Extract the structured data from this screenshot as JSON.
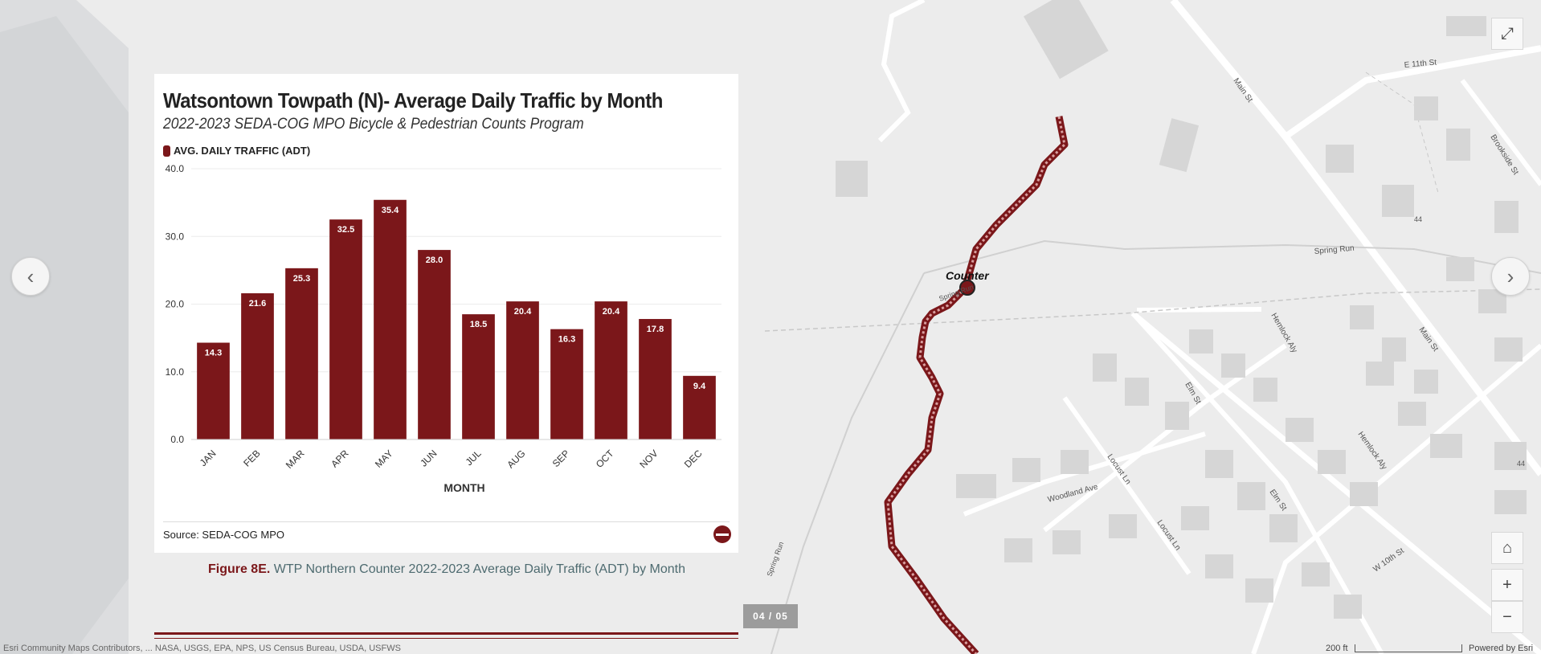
{
  "chart": {
    "title": "Watsontown Towpath (N)- Average Daily Traffic by Month",
    "subtitle": "2022-2023 SEDA-COG MPO Bicycle & Pedestrian Counts Program",
    "legend": "AVG. DAILY TRAFFIC (ADT)",
    "source": "Source: SEDA-COG MPO"
  },
  "chart_data": {
    "type": "bar",
    "title": "Watsontown Towpath (N)- Average Daily Traffic by Month",
    "subtitle": "2022-2023 SEDA-COG MPO Bicycle & Pedestrian Counts Program",
    "xlabel": "MONTH",
    "ylabel": "",
    "categories": [
      "JAN",
      "FEB",
      "MAR",
      "APR",
      "MAY",
      "JUN",
      "JUL",
      "AUG",
      "SEP",
      "OCT",
      "NOV",
      "DEC"
    ],
    "series": [
      {
        "name": "AVG. DAILY TRAFFIC (ADT)",
        "values": [
          14.3,
          21.6,
          25.3,
          32.5,
          35.4,
          28.0,
          18.5,
          20.4,
          16.3,
          20.4,
          17.8,
          9.4
        ],
        "labels": [
          "14.3",
          "21.6",
          "25.3",
          "32.5",
          "35.4",
          "28.0",
          "18.5",
          "20.4",
          "16.3",
          "20.4",
          "17.8",
          "9.4"
        ],
        "color": "#7b171a"
      }
    ],
    "ylim": [
      0,
      40
    ],
    "yticks": [
      "0.0",
      "10.0",
      "20.0",
      "30.0",
      "40.0"
    ],
    "ytick_values": [
      0,
      10,
      20,
      30,
      40
    ],
    "grid": true,
    "legend_position": "top-left"
  },
  "caption": {
    "label": "Figure 8E.",
    "text": "WTP Northern Counter 2022-2023 Average Daily Traffic (ADT) by Month"
  },
  "pager": "04 / 05",
  "map": {
    "counter_label": "Counter",
    "streets": [
      "E 11th St",
      "Main St",
      "Brookside St",
      "44",
      "Spring Run",
      "Hemlock Aly",
      "Main St",
      "Elm St",
      "Locust Ln",
      "Woodland Ave",
      "Elm St",
      "Locust Ln",
      "W 10th St",
      "Hemlock Aly",
      "44",
      "Spring Run",
      "Spring Run"
    ],
    "attribution": "Esri Community Maps Contributors, ... NASA, USGS, EPA, NPS, US Census Bureau, USDA, USFWS",
    "scale": "200 ft",
    "powered": "Powered by Esri"
  },
  "controls": {
    "prev": "‹",
    "next": "›",
    "expand": "⤢",
    "home": "⌂",
    "zoom_in": "+",
    "zoom_out": "−"
  },
  "colors": {
    "accent": "#7b171a",
    "trail": "#c98b8b",
    "caption_text": "#4e6b70"
  }
}
